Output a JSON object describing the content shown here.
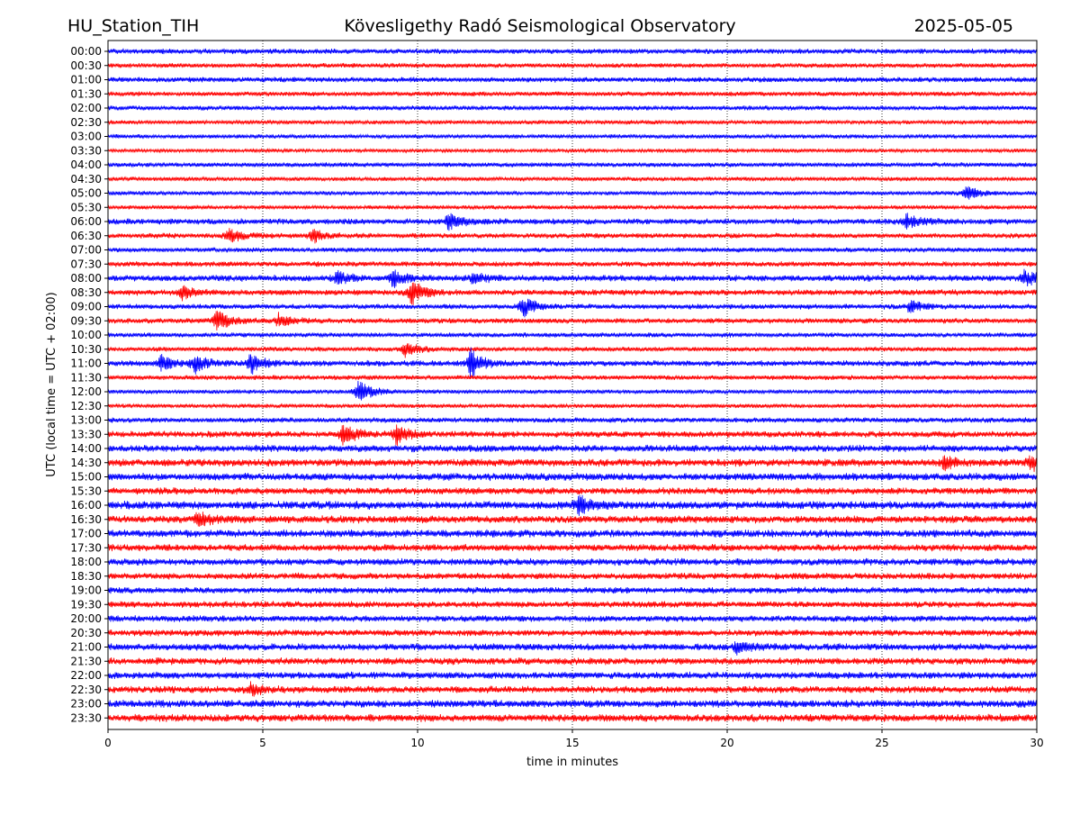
{
  "header": {
    "station": "HU_Station_TIH",
    "observatory": "Kövesligethy Radó Seismological Observatory",
    "date": "2025-05-05"
  },
  "chart_data": {
    "type": "line",
    "xlabel": "time in minutes",
    "ylabel": "UTC (local time = UTC + 02:00)",
    "xlim": [
      0,
      30
    ],
    "x_ticks": [
      0,
      5,
      10,
      15,
      20,
      25,
      30
    ],
    "grid": "vertical dotted",
    "series_colors": [
      "#0000ff",
      "#ff0000"
    ],
    "rows": [
      "00:00",
      "00:30",
      "01:00",
      "01:30",
      "02:00",
      "02:30",
      "03:00",
      "03:30",
      "04:00",
      "04:30",
      "05:00",
      "05:30",
      "06:00",
      "06:30",
      "07:00",
      "07:30",
      "08:00",
      "08:30",
      "09:00",
      "09:30",
      "10:00",
      "10:30",
      "11:00",
      "11:30",
      "12:00",
      "12:30",
      "13:00",
      "13:30",
      "14:00",
      "14:30",
      "15:00",
      "15:30",
      "16:00",
      "16:30",
      "17:00",
      "17:30",
      "18:00",
      "18:30",
      "19:00",
      "19:30",
      "20:00",
      "20:30",
      "21:00",
      "21:30",
      "22:00",
      "22:30",
      "23:00",
      "23:30"
    ],
    "noise_levels": [
      0.9,
      0.8,
      0.9,
      0.8,
      0.8,
      0.7,
      0.7,
      0.6,
      0.8,
      0.7,
      0.7,
      0.7,
      1.0,
      0.9,
      0.8,
      0.9,
      1.1,
      1.0,
      0.9,
      0.9,
      0.8,
      0.8,
      1.0,
      0.8,
      0.7,
      0.7,
      0.9,
      1.1,
      1.2,
      1.3,
      1.3,
      1.2,
      1.4,
      1.3,
      1.3,
      1.2,
      1.2,
      1.1,
      1.1,
      1.1,
      1.1,
      1.1,
      1.2,
      1.2,
      1.2,
      1.2,
      1.3,
      1.3
    ],
    "events": [
      {
        "row": "05:00",
        "minute": 27.7,
        "amp": 2.0
      },
      {
        "row": "06:00",
        "minute": 11.0,
        "amp": 2.2
      },
      {
        "row": "06:00",
        "minute": 25.8,
        "amp": 2.0
      },
      {
        "row": "06:30",
        "minute": 3.9,
        "amp": 2.2
      },
      {
        "row": "06:30",
        "minute": 6.6,
        "amp": 1.8
      },
      {
        "row": "08:00",
        "minute": 7.4,
        "amp": 1.8
      },
      {
        "row": "08:00",
        "minute": 9.2,
        "amp": 2.2
      },
      {
        "row": "08:00",
        "minute": 11.8,
        "amp": 1.6
      },
      {
        "row": "08:00",
        "minute": 29.6,
        "amp": 2.2
      },
      {
        "row": "08:30",
        "minute": 2.4,
        "amp": 1.8
      },
      {
        "row": "08:30",
        "minute": 9.8,
        "amp": 3.5
      },
      {
        "row": "09:00",
        "minute": 13.4,
        "amp": 3.0
      },
      {
        "row": "09:00",
        "minute": 25.9,
        "amp": 1.8
      },
      {
        "row": "09:30",
        "minute": 3.5,
        "amp": 3.0
      },
      {
        "row": "09:30",
        "minute": 5.5,
        "amp": 1.8
      },
      {
        "row": "10:30",
        "minute": 9.6,
        "amp": 2.0
      },
      {
        "row": "11:00",
        "minute": 1.7,
        "amp": 2.2
      },
      {
        "row": "11:00",
        "minute": 2.8,
        "amp": 2.5
      },
      {
        "row": "11:00",
        "minute": 4.6,
        "amp": 3.0
      },
      {
        "row": "11:00",
        "minute": 11.7,
        "amp": 4.0
      },
      {
        "row": "12:00",
        "minute": 8.1,
        "amp": 3.5
      },
      {
        "row": "13:30",
        "minute": 7.6,
        "amp": 2.8
      },
      {
        "row": "13:30",
        "minute": 9.3,
        "amp": 2.5
      },
      {
        "row": "14:30",
        "minute": 29.8,
        "amp": 2.0
      },
      {
        "row": "14:30",
        "minute": 27.0,
        "amp": 1.6
      },
      {
        "row": "16:00",
        "minute": 15.2,
        "amp": 2.2
      },
      {
        "row": "16:30",
        "minute": 2.9,
        "amp": 1.8
      },
      {
        "row": "21:00",
        "minute": 20.3,
        "amp": 1.6
      },
      {
        "row": "22:30",
        "minute": 4.6,
        "amp": 1.4
      }
    ]
  }
}
